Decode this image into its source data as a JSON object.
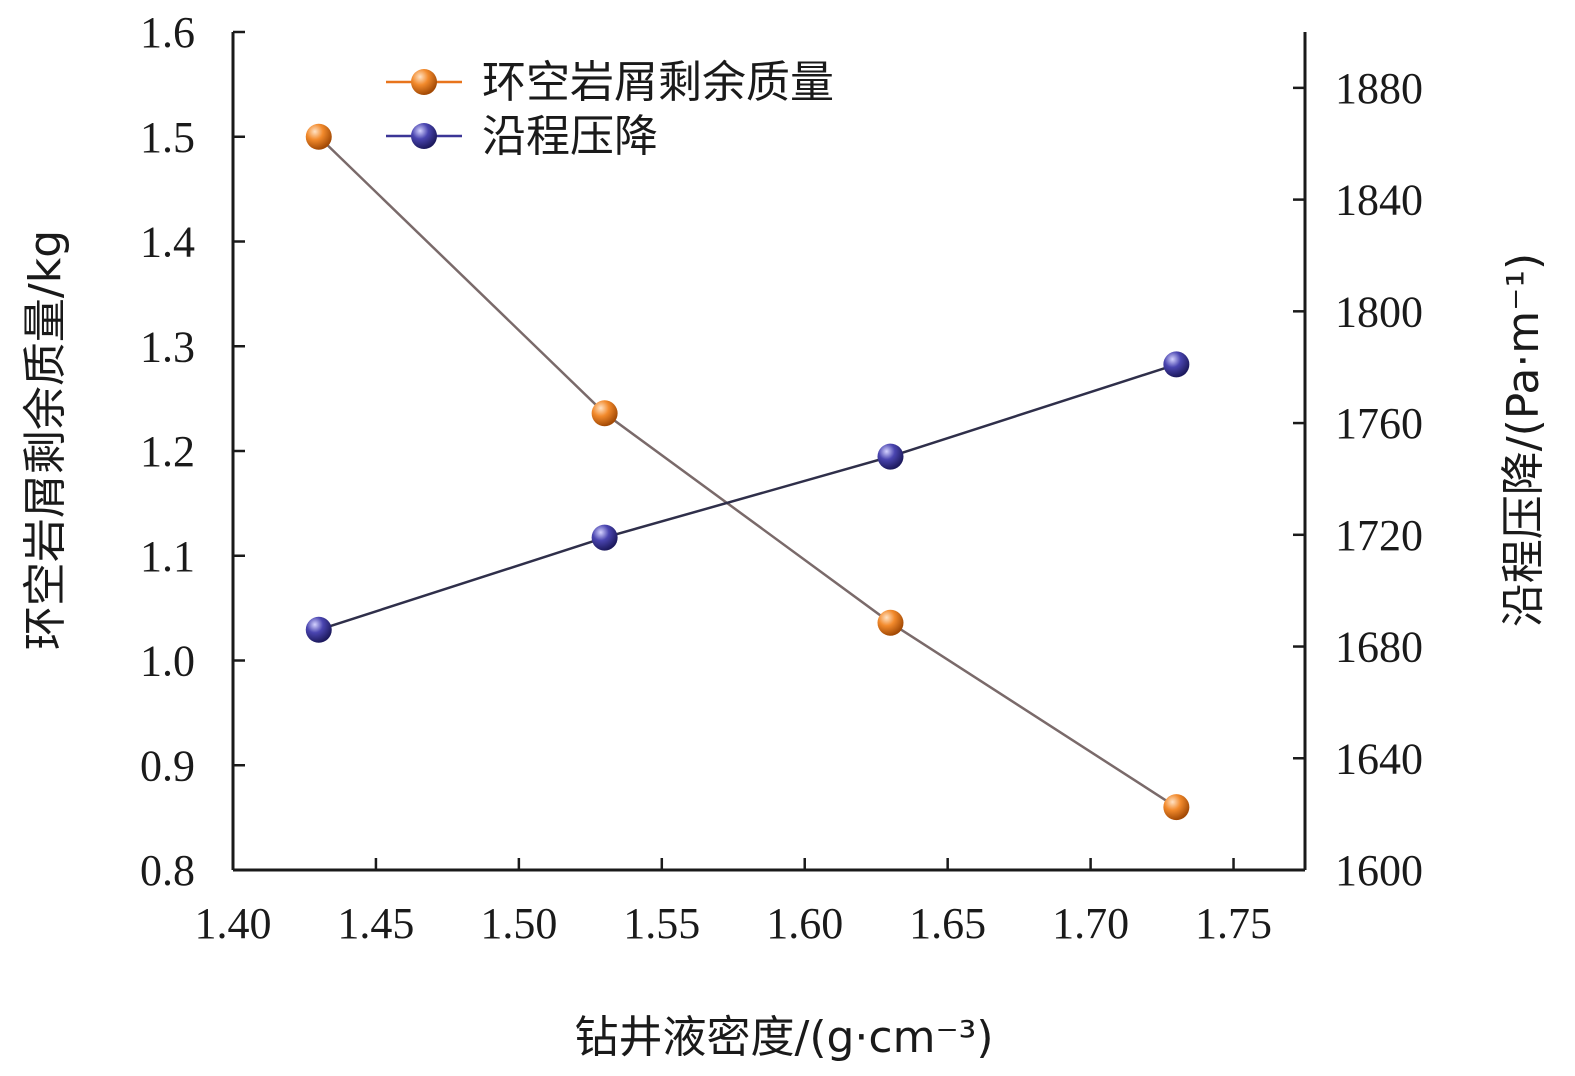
{
  "chart_data": {
    "type": "line",
    "xlabel": "钻井液密度/(g·cm⁻³)",
    "ylabel_left": "环空岩屑剩余质量/kg",
    "ylabel_right": "沿程压降/(Pa·m⁻¹)",
    "xlim": [
      1.4,
      1.775
    ],
    "ylim_left": [
      0.8,
      1.6
    ],
    "ylim_right": [
      1600,
      1900
    ],
    "x_ticks": [
      "1.40",
      "1.45",
      "1.50",
      "1.55",
      "1.60",
      "1.65",
      "1.70",
      "1.75"
    ],
    "y_left_ticks": [
      "0.8",
      "0.9",
      "1.0",
      "1.1",
      "1.2",
      "1.3",
      "1.4",
      "1.5",
      "1.6"
    ],
    "y_right_ticks": [
      "1600",
      "1640",
      "1680",
      "1720",
      "1760",
      "1800",
      "1840",
      "1880"
    ],
    "legend_position": "top-left",
    "grid": false,
    "series": [
      {
        "name": "环空岩屑剩余质量",
        "axis": "left",
        "color": "#e8741c",
        "x": [
          1.43,
          1.53,
          1.63,
          1.73
        ],
        "values": [
          1.5,
          1.236,
          1.036,
          0.86
        ]
      },
      {
        "name": "沿程压降",
        "axis": "right",
        "color": "#3b3596",
        "x": [
          1.43,
          1.53,
          1.63,
          1.73
        ],
        "values": [
          1686,
          1719,
          1748,
          1781
        ]
      }
    ]
  }
}
